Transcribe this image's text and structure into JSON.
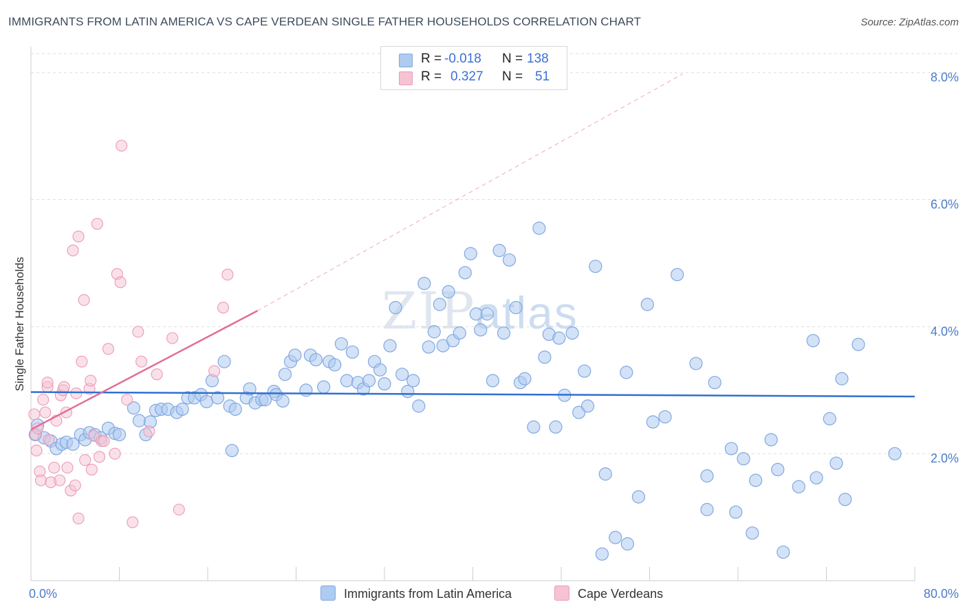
{
  "header": {
    "title": "IMMIGRANTS FROM LATIN AMERICA VS CAPE VERDEAN SINGLE FATHER HOUSEHOLDS CORRELATION CHART",
    "source": "Source: ZipAtlas.com"
  },
  "legend": {
    "r_label": "R =",
    "n_label": "N =",
    "series1": {
      "r": "-0.018",
      "n": "138"
    },
    "series2": {
      "r": "0.327",
      "n": "51"
    }
  },
  "watermark": {
    "zip": "ZIP",
    "atlas": "atlas"
  },
  "colors": {
    "blue_fill": "#aecbf0",
    "blue_stroke": "#7fa8e0",
    "blue_line": "#2f6fd0",
    "pink_fill": "#f6c3d3",
    "pink_stroke": "#eb99b6",
    "pink_line": "#e06c98",
    "grid": "#dddddd",
    "tick_label": "#4a7cc9"
  },
  "chart_data": {
    "type": "scatter",
    "title": "IMMIGRANTS FROM LATIN AMERICA VS CAPE VERDEAN SINGLE FATHER HOUSEHOLDS CORRELATION CHART",
    "xlabel": "",
    "ylabel": "Single Father Households",
    "xlim": [
      0,
      80
    ],
    "ylim": [
      0,
      8.3
    ],
    "x_tick_labels": [
      "0.0%",
      "80.0%"
    ],
    "y_ticks": [
      2,
      4,
      6,
      8
    ],
    "y_tick_labels": [
      "2.0%",
      "4.0%",
      "6.0%",
      "8.0%"
    ],
    "legend_position": "top-center",
    "series": [
      {
        "name": "Immigrants from Latin America",
        "r": -0.018,
        "n": 138,
        "trend": {
          "x": [
            0,
            80
          ],
          "y": [
            2.97,
            2.9
          ]
        },
        "points": [
          [
            0.4,
            2.3
          ],
          [
            0.6,
            2.45
          ],
          [
            1.2,
            2.25
          ],
          [
            1.8,
            2.2
          ],
          [
            2.3,
            2.08
          ],
          [
            2.8,
            2.15
          ],
          [
            3.2,
            2.18
          ],
          [
            3.8,
            2.15
          ],
          [
            4.5,
            2.3
          ],
          [
            4.9,
            2.22
          ],
          [
            5.3,
            2.33
          ],
          [
            5.8,
            2.3
          ],
          [
            6.3,
            2.25
          ],
          [
            7.0,
            2.4
          ],
          [
            7.6,
            2.32
          ],
          [
            8.0,
            2.3
          ],
          [
            9.3,
            2.72
          ],
          [
            9.8,
            2.52
          ],
          [
            10.4,
            2.3
          ],
          [
            10.8,
            2.5
          ],
          [
            11.3,
            2.68
          ],
          [
            11.8,
            2.7
          ],
          [
            12.4,
            2.7
          ],
          [
            13.2,
            2.65
          ],
          [
            13.7,
            2.7
          ],
          [
            14.2,
            2.88
          ],
          [
            14.8,
            2.88
          ],
          [
            15.4,
            2.93
          ],
          [
            15.9,
            2.82
          ],
          [
            16.4,
            3.15
          ],
          [
            16.9,
            2.88
          ],
          [
            17.5,
            3.45
          ],
          [
            18.0,
            2.75
          ],
          [
            18.5,
            2.7
          ],
          [
            18.2,
            2.05
          ],
          [
            19.5,
            2.88
          ],
          [
            19.8,
            3.02
          ],
          [
            20.3,
            2.8
          ],
          [
            20.9,
            2.85
          ],
          [
            21.2,
            2.85
          ],
          [
            22.0,
            2.98
          ],
          [
            22.2,
            2.93
          ],
          [
            22.8,
            2.83
          ],
          [
            23.0,
            3.25
          ],
          [
            23.5,
            3.45
          ],
          [
            23.9,
            3.55
          ],
          [
            24.9,
            3.0
          ],
          [
            25.3,
            3.55
          ],
          [
            25.8,
            3.48
          ],
          [
            26.5,
            3.05
          ],
          [
            27.0,
            3.45
          ],
          [
            27.5,
            3.4
          ],
          [
            28.1,
            3.73
          ],
          [
            28.6,
            3.15
          ],
          [
            29.1,
            3.6
          ],
          [
            29.6,
            3.12
          ],
          [
            30.1,
            3.02
          ],
          [
            30.6,
            3.15
          ],
          [
            31.1,
            3.45
          ],
          [
            31.6,
            3.32
          ],
          [
            32.0,
            3.1
          ],
          [
            32.5,
            3.7
          ],
          [
            33.0,
            4.3
          ],
          [
            33.6,
            3.25
          ],
          [
            34.1,
            2.98
          ],
          [
            34.6,
            3.15
          ],
          [
            35.1,
            2.75
          ],
          [
            35.6,
            4.68
          ],
          [
            36.0,
            3.68
          ],
          [
            36.5,
            3.92
          ],
          [
            37.0,
            4.35
          ],
          [
            37.3,
            3.7
          ],
          [
            37.8,
            4.55
          ],
          [
            38.2,
            3.78
          ],
          [
            38.8,
            3.9
          ],
          [
            39.3,
            4.85
          ],
          [
            39.8,
            5.15
          ],
          [
            40.3,
            4.2
          ],
          [
            40.7,
            3.95
          ],
          [
            41.3,
            4.2
          ],
          [
            41.8,
            3.15
          ],
          [
            42.4,
            5.2
          ],
          [
            42.8,
            3.9
          ],
          [
            43.3,
            5.05
          ],
          [
            43.9,
            4.3
          ],
          [
            44.3,
            3.12
          ],
          [
            44.7,
            3.18
          ],
          [
            45.5,
            2.42
          ],
          [
            46.0,
            5.55
          ],
          [
            46.5,
            3.52
          ],
          [
            46.9,
            3.88
          ],
          [
            47.5,
            2.42
          ],
          [
            47.8,
            3.82
          ],
          [
            48.3,
            2.92
          ],
          [
            49.0,
            3.9
          ],
          [
            49.6,
            2.65
          ],
          [
            50.1,
            3.3
          ],
          [
            50.4,
            2.75
          ],
          [
            51.1,
            4.95
          ],
          [
            51.7,
            0.42
          ],
          [
            52.0,
            1.68
          ],
          [
            52.9,
            0.68
          ],
          [
            53.9,
            3.28
          ],
          [
            54.0,
            0.58
          ],
          [
            55.0,
            1.32
          ],
          [
            55.8,
            4.35
          ],
          [
            56.3,
            2.5
          ],
          [
            57.4,
            2.58
          ],
          [
            58.5,
            4.82
          ],
          [
            60.2,
            3.42
          ],
          [
            61.2,
            1.65
          ],
          [
            61.2,
            1.12
          ],
          [
            61.9,
            3.12
          ],
          [
            63.4,
            2.08
          ],
          [
            63.8,
            1.08
          ],
          [
            64.5,
            1.92
          ],
          [
            65.3,
            0.75
          ],
          [
            65.6,
            1.58
          ],
          [
            67.0,
            2.22
          ],
          [
            67.6,
            1.75
          ],
          [
            68.1,
            0.45
          ],
          [
            69.5,
            1.48
          ],
          [
            70.8,
            3.78
          ],
          [
            71.1,
            1.62
          ],
          [
            72.3,
            2.55
          ],
          [
            72.9,
            1.85
          ],
          [
            73.4,
            3.18
          ],
          [
            73.7,
            1.28
          ],
          [
            74.9,
            3.72
          ],
          [
            78.2,
            2.0
          ]
        ]
      },
      {
        "name": "Cape Verdeans",
        "r": 0.327,
        "n": 51,
        "trend": {
          "x": [
            0,
            20.5
          ],
          "y": [
            2.38,
            4.25
          ]
        },
        "trend_extended": {
          "x": [
            20.5,
            59.0
          ],
          "y": [
            4.25,
            7.98
          ]
        },
        "points": [
          [
            0.3,
            2.62
          ],
          [
            0.4,
            2.3
          ],
          [
            0.5,
            2.05
          ],
          [
            0.6,
            2.4
          ],
          [
            0.8,
            1.72
          ],
          [
            0.9,
            1.58
          ],
          [
            1.1,
            2.85
          ],
          [
            1.3,
            2.65
          ],
          [
            1.5,
            3.05
          ],
          [
            1.5,
            3.12
          ],
          [
            1.6,
            2.22
          ],
          [
            1.8,
            1.55
          ],
          [
            2.1,
            1.78
          ],
          [
            2.3,
            2.52
          ],
          [
            2.6,
            1.58
          ],
          [
            2.7,
            2.92
          ],
          [
            2.9,
            3.0
          ],
          [
            3.0,
            3.05
          ],
          [
            3.2,
            2.65
          ],
          [
            3.3,
            1.78
          ],
          [
            3.6,
            1.42
          ],
          [
            3.8,
            5.2
          ],
          [
            4.0,
            1.5
          ],
          [
            4.3,
            0.98
          ],
          [
            4.1,
            2.95
          ],
          [
            4.3,
            5.42
          ],
          [
            4.6,
            3.45
          ],
          [
            4.8,
            4.42
          ],
          [
            4.9,
            1.9
          ],
          [
            5.3,
            3.02
          ],
          [
            5.4,
            3.15
          ],
          [
            5.5,
            1.75
          ],
          [
            5.7,
            2.28
          ],
          [
            6.0,
            5.62
          ],
          [
            6.2,
            1.95
          ],
          [
            6.4,
            2.2
          ],
          [
            6.6,
            2.2
          ],
          [
            7.0,
            3.65
          ],
          [
            7.6,
            2.0
          ],
          [
            7.8,
            4.83
          ],
          [
            8.1,
            4.7
          ],
          [
            8.2,
            6.85
          ],
          [
            8.7,
            2.85
          ],
          [
            9.2,
            0.92
          ],
          [
            9.7,
            3.92
          ],
          [
            10.0,
            3.45
          ],
          [
            10.7,
            2.35
          ],
          [
            11.4,
            3.25
          ],
          [
            12.8,
            3.82
          ],
          [
            13.4,
            1.12
          ],
          [
            16.6,
            3.3
          ],
          [
            17.4,
            4.3
          ],
          [
            17.8,
            4.82
          ]
        ]
      }
    ]
  },
  "bottom_legend": {
    "series1": "Immigrants from Latin America",
    "series2": "Cape Verdeans"
  }
}
